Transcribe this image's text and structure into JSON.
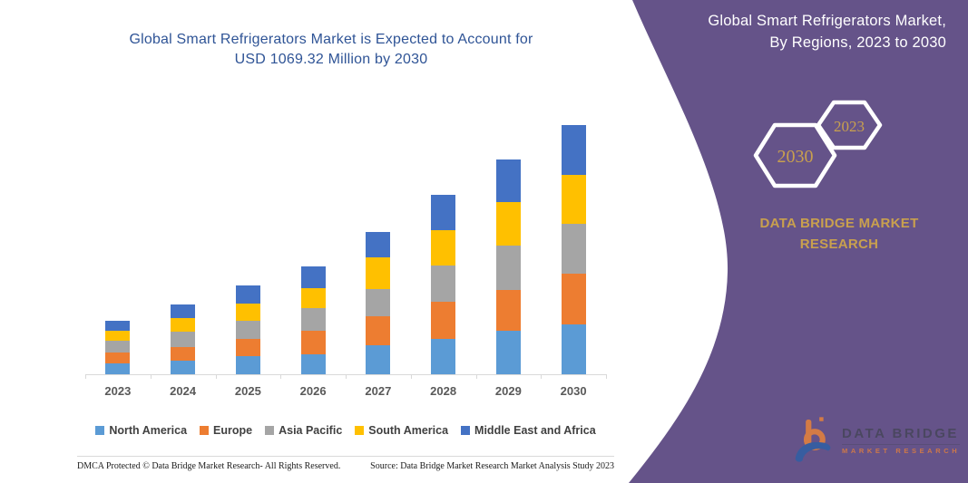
{
  "title": {
    "line1": "Global Smart Refrigerators Market is Expected to Account for",
    "line2": "USD 1069.32 Million by 2030"
  },
  "side_panel": {
    "heading_line1": "Global Smart Refrigerators Market,",
    "heading_line2": "By Regions, 2023 to 2030",
    "hexagons": {
      "back_year": "2030",
      "front_year": "2023"
    },
    "brand_line1": "DATA BRIDGE MARKET",
    "brand_line2": "RESEARCH"
  },
  "chart_data": {
    "type": "bar",
    "stacked": true,
    "title": "Global Smart Refrigerators Market is Expected to Account for USD 1069.32 Million by 2030",
    "units": "USD Million",
    "categories": [
      "2023",
      "2024",
      "2025",
      "2026",
      "2027",
      "2028",
      "2029",
      "2030"
    ],
    "series": [
      {
        "name": "North America",
        "color": "#5B9BD5",
        "values": [
          45.5,
          60.0,
          76.5,
          84.4,
          124.4,
          150.0,
          185.4,
          214.8
        ]
      },
      {
        "name": "Europe",
        "color": "#ED7D31",
        "values": [
          47.8,
          57.0,
          75.0,
          103.8,
          125.6,
          160.0,
          177.7,
          216.0
        ]
      },
      {
        "name": "Asia Pacific",
        "color": "#A5A5A5",
        "values": [
          50.5,
          64.0,
          78.0,
          94.5,
          113.9,
          156.0,
          187.8,
          214.8
        ]
      },
      {
        "name": "South America",
        "color": "#FFC000",
        "values": [
          43.9,
          59.0,
          75.5,
          86.7,
          138.8,
          152.0,
          187.8,
          209.4
        ]
      },
      {
        "name": "Middle East and Africa",
        "color": "#4472C4",
        "values": [
          41.6,
          58.0,
          75.0,
          92.1,
          107.7,
          151.0,
          183.9,
          214.3
        ]
      }
    ],
    "totals_usd_million": [
      229.3,
      298.0,
      380.0,
      461.5,
      610.4,
      769.0,
      922.6,
      1069.32
    ],
    "ylim": [
      0,
      1100
    ],
    "grid": false,
    "legend_position": "bottom",
    "axis_color": "#D9D9D9",
    "tick_label_color": "#595959"
  },
  "footer": {
    "left": "DMCA Protected © Data Bridge Market Research-  All Rights Reserved.",
    "right": "Source: Data Bridge Market Research  Market Analysis Study 2023"
  },
  "logo": {
    "line1": "DATA BRIDGE",
    "line2": "MARKET RESEARCH"
  },
  "colors": {
    "title_text": "#2F5496",
    "panel": "#655389",
    "gold": "#C9A04E",
    "heading_text": "#FFFFFF"
  }
}
